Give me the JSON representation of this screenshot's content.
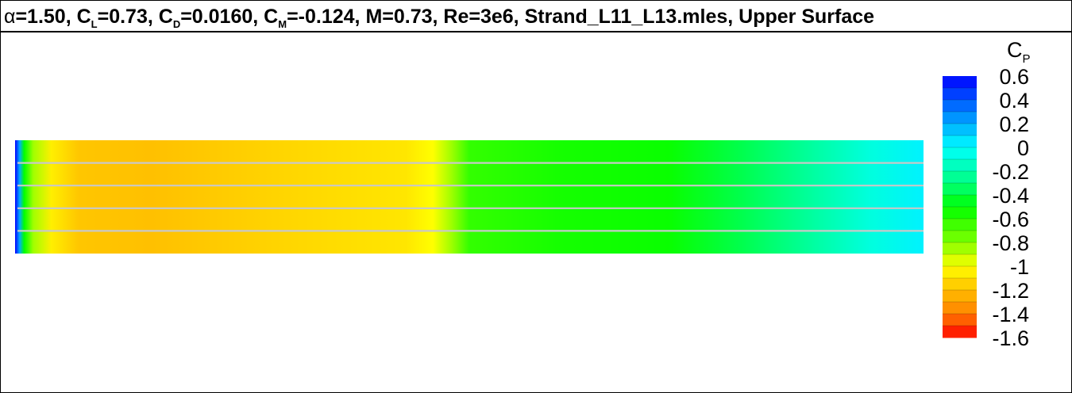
{
  "title": {
    "alpha_symbol": "α",
    "alpha_value": "=1.50, C",
    "cl_sub": "L",
    "cl_value": "=0.73, C",
    "cd_sub": "D",
    "cd_value": "=0.0160, C",
    "cm_sub": "M",
    "cm_value": "=-0.124, M=0.73, Re=3e6, Strand_L11_L13.mles, Upper Surface"
  },
  "legend": {
    "label_main": "C",
    "label_sub": "P"
  },
  "chart_data": {
    "type": "heatmap",
    "title": "α=1.50, CL=0.73, CD=0.0160, CM=-0.124, M=0.73, Re=3e6, Strand_L11_L13.mles, Upper Surface",
    "colorbar": {
      "label": "CP",
      "range": [
        -1.6,
        0.6
      ],
      "levels": [
        0.6,
        0.5,
        0.4,
        0.3,
        0.2,
        0.1,
        0.0,
        -0.1,
        -0.2,
        -0.3,
        -0.4,
        -0.5,
        -0.6,
        -0.7,
        -0.8,
        -0.9,
        -1.0,
        -1.1,
        -1.2,
        -1.3,
        -1.4,
        -1.5,
        -1.6
      ],
      "tick_labels": [
        "0.6",
        "0.4",
        "0.2",
        "0",
        "-0.2",
        "-0.4",
        "-0.6",
        "-0.8",
        "-1",
        "-1.2",
        "-1.4",
        "-1.6"
      ],
      "tick_values": [
        0.6,
        0.4,
        0.2,
        0.0,
        -0.2,
        -0.4,
        -0.6,
        -0.8,
        -1.0,
        -1.2,
        -1.4,
        -1.6
      ],
      "colormap": [
        {
          "value": 0.6,
          "color": "#0000ff"
        },
        {
          "value": 0.3,
          "color": "#0080ff"
        },
        {
          "value": 0.0,
          "color": "#00ffff"
        },
        {
          "value": -0.3,
          "color": "#00ff80"
        },
        {
          "value": -0.5,
          "color": "#00ff00"
        },
        {
          "value": -0.8,
          "color": "#80ff00"
        },
        {
          "value": -1.0,
          "color": "#ffff00"
        },
        {
          "value": -1.2,
          "color": "#ffc000"
        },
        {
          "value": -1.4,
          "color": "#ff8000"
        },
        {
          "value": -1.6,
          "color": "#ff0000"
        }
      ]
    },
    "chordwise_profile": [
      {
        "x": 0.0,
        "cp": 0.6
      },
      {
        "x": 0.005,
        "cp": 0.2
      },
      {
        "x": 0.01,
        "cp": -0.5
      },
      {
        "x": 0.02,
        "cp": -0.85
      },
      {
        "x": 0.04,
        "cp": -1.05
      },
      {
        "x": 0.07,
        "cp": -1.18
      },
      {
        "x": 0.15,
        "cp": -1.2
      },
      {
        "x": 0.3,
        "cp": -1.13
      },
      {
        "x": 0.43,
        "cp": -1.08
      },
      {
        "x": 0.46,
        "cp": -1.0
      },
      {
        "x": 0.48,
        "cp": -0.85
      },
      {
        "x": 0.5,
        "cp": -0.62
      },
      {
        "x": 0.6,
        "cp": -0.55
      },
      {
        "x": 0.72,
        "cp": -0.52
      },
      {
        "x": 0.8,
        "cp": -0.38
      },
      {
        "x": 0.88,
        "cp": -0.22
      },
      {
        "x": 0.94,
        "cp": -0.08
      },
      {
        "x": 1.0,
        "cp": 0.03
      }
    ],
    "strips": 5,
    "grid": false
  }
}
